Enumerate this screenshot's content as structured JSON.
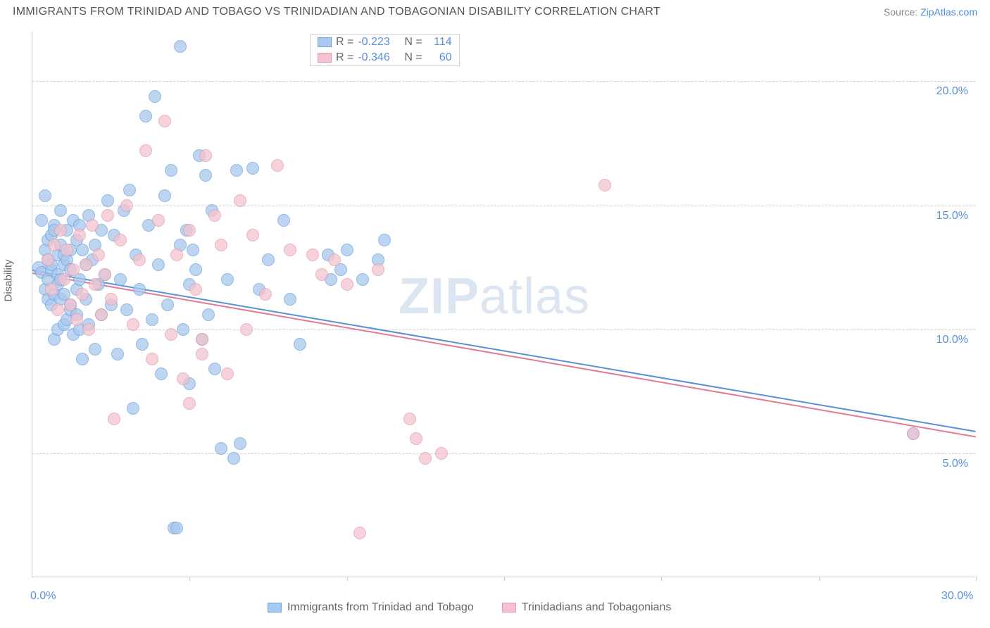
{
  "title": "IMMIGRANTS FROM TRINIDAD AND TOBAGO VS TRINIDADIAN AND TOBAGONIAN DISABILITY CORRELATION CHART",
  "source_prefix": "Source: ",
  "source_link": "ZipAtlas.com",
  "y_axis_title": "Disability",
  "watermark_bold": "ZIP",
  "watermark_rest": "atlas",
  "chart": {
    "type": "scatter",
    "xlim": [
      0,
      30
    ],
    "ylim": [
      0,
      22
    ],
    "y_ticks": [
      5,
      10,
      15,
      20
    ],
    "y_tick_labels": [
      "5.0%",
      "10.0%",
      "15.0%",
      "20.0%"
    ],
    "x_ticks": [
      5,
      10,
      15,
      20,
      25,
      30
    ],
    "x_corner_left": "0.0%",
    "x_corner_right": "30.0%",
    "background_color": "#ffffff",
    "grid_color": "#d0d0d0",
    "axis_color": "#cccccc",
    "tick_label_color": "#5b8fd8",
    "point_radius": 9,
    "point_opacity_fill": 0.35,
    "series": [
      {
        "name": "Immigrants from Trinidad and Tobago",
        "color_stroke": "#6da4e0",
        "color_fill": "#a9c8ed",
        "R": "-0.223",
        "N": "114",
        "trend": {
          "x1": 0,
          "y1": 12.4,
          "x2": 30,
          "y2": 5.9,
          "color": "#5b8fd8"
        },
        "points": [
          [
            0.2,
            12.5
          ],
          [
            0.3,
            12.3
          ],
          [
            0.3,
            14.4
          ],
          [
            0.4,
            13.2
          ],
          [
            0.4,
            11.6
          ],
          [
            0.4,
            15.4
          ],
          [
            0.5,
            12.8
          ],
          [
            0.5,
            12.0
          ],
          [
            0.5,
            13.6
          ],
          [
            0.5,
            11.2
          ],
          [
            0.6,
            12.4
          ],
          [
            0.6,
            13.8
          ],
          [
            0.6,
            11.0
          ],
          [
            0.6,
            12.6
          ],
          [
            0.7,
            14.2
          ],
          [
            0.7,
            11.4
          ],
          [
            0.7,
            14.0
          ],
          [
            0.7,
            9.6
          ],
          [
            0.8,
            12.2
          ],
          [
            0.8,
            13.0
          ],
          [
            0.8,
            11.8
          ],
          [
            0.8,
            10.0
          ],
          [
            0.9,
            13.4
          ],
          [
            0.9,
            12.0
          ],
          [
            0.9,
            11.2
          ],
          [
            0.9,
            14.8
          ],
          [
            1.0,
            12.6
          ],
          [
            1.0,
            10.2
          ],
          [
            1.0,
            13.0
          ],
          [
            1.0,
            11.4
          ],
          [
            1.1,
            12.8
          ],
          [
            1.1,
            14.0
          ],
          [
            1.1,
            10.4
          ],
          [
            1.2,
            13.2
          ],
          [
            1.2,
            11.0
          ],
          [
            1.2,
            10.8
          ],
          [
            1.2,
            12.4
          ],
          [
            1.3,
            14.4
          ],
          [
            1.3,
            9.8
          ],
          [
            1.4,
            13.6
          ],
          [
            1.4,
            11.6
          ],
          [
            1.4,
            10.6
          ],
          [
            1.5,
            12.0
          ],
          [
            1.5,
            14.2
          ],
          [
            1.5,
            10.0
          ],
          [
            1.6,
            13.2
          ],
          [
            1.6,
            8.8
          ],
          [
            1.7,
            12.6
          ],
          [
            1.7,
            11.2
          ],
          [
            1.8,
            14.6
          ],
          [
            1.8,
            10.2
          ],
          [
            1.9,
            12.8
          ],
          [
            2.0,
            13.4
          ],
          [
            2.0,
            9.2
          ],
          [
            2.1,
            11.8
          ],
          [
            2.2,
            14.0
          ],
          [
            2.2,
            10.6
          ],
          [
            2.3,
            12.2
          ],
          [
            2.4,
            15.2
          ],
          [
            2.5,
            11.0
          ],
          [
            2.6,
            13.8
          ],
          [
            2.7,
            9.0
          ],
          [
            2.8,
            12.0
          ],
          [
            2.9,
            14.8
          ],
          [
            3.0,
            10.8
          ],
          [
            3.1,
            15.6
          ],
          [
            3.2,
            6.8
          ],
          [
            3.3,
            13.0
          ],
          [
            3.4,
            11.6
          ],
          [
            3.5,
            9.4
          ],
          [
            3.6,
            18.6
          ],
          [
            3.7,
            14.2
          ],
          [
            3.8,
            10.4
          ],
          [
            3.9,
            19.4
          ],
          [
            4.0,
            12.6
          ],
          [
            4.1,
            8.2
          ],
          [
            4.2,
            15.4
          ],
          [
            4.3,
            11.0
          ],
          [
            4.4,
            16.4
          ],
          [
            4.5,
            2.0
          ],
          [
            4.6,
            2.0
          ],
          [
            4.7,
            13.4
          ],
          [
            4.7,
            21.4
          ],
          [
            4.8,
            10.0
          ],
          [
            4.9,
            14.0
          ],
          [
            5.0,
            11.8
          ],
          [
            5.0,
            7.8
          ],
          [
            5.1,
            13.2
          ],
          [
            5.2,
            12.4
          ],
          [
            5.3,
            17.0
          ],
          [
            5.4,
            9.6
          ],
          [
            5.5,
            16.2
          ],
          [
            5.6,
            10.6
          ],
          [
            5.7,
            14.8
          ],
          [
            5.8,
            8.4
          ],
          [
            6.0,
            5.2
          ],
          [
            6.2,
            12.0
          ],
          [
            6.4,
            4.8
          ],
          [
            6.5,
            16.4
          ],
          [
            6.6,
            5.4
          ],
          [
            7.0,
            16.5
          ],
          [
            7.2,
            11.6
          ],
          [
            7.5,
            12.8
          ],
          [
            8.0,
            14.4
          ],
          [
            8.2,
            11.2
          ],
          [
            8.5,
            9.4
          ],
          [
            9.4,
            13.0
          ],
          [
            9.5,
            12.0
          ],
          [
            9.8,
            12.4
          ],
          [
            10.0,
            13.2
          ],
          [
            10.5,
            12.0
          ],
          [
            11.0,
            12.8
          ],
          [
            11.2,
            13.6
          ],
          [
            28.0,
            5.8
          ]
        ]
      },
      {
        "name": "Trinidadians and Tobagonians",
        "color_stroke": "#e89aae",
        "color_fill": "#f3c4d0",
        "R": "-0.346",
        "N": "60",
        "trend": {
          "x1": 0,
          "y1": 12.3,
          "x2": 30,
          "y2": 5.7,
          "color": "#e37a97"
        },
        "points": [
          [
            0.5,
            12.8
          ],
          [
            0.6,
            11.6
          ],
          [
            0.7,
            13.4
          ],
          [
            0.8,
            10.8
          ],
          [
            0.9,
            14.0
          ],
          [
            1.0,
            12.0
          ],
          [
            1.1,
            13.2
          ],
          [
            1.2,
            11.0
          ],
          [
            1.3,
            12.4
          ],
          [
            1.4,
            10.4
          ],
          [
            1.5,
            13.8
          ],
          [
            1.6,
            11.4
          ],
          [
            1.7,
            12.6
          ],
          [
            1.8,
            10.0
          ],
          [
            1.9,
            14.2
          ],
          [
            2.0,
            11.8
          ],
          [
            2.1,
            13.0
          ],
          [
            2.2,
            10.6
          ],
          [
            2.3,
            12.2
          ],
          [
            2.4,
            14.6
          ],
          [
            2.5,
            11.2
          ],
          [
            2.6,
            6.4
          ],
          [
            2.8,
            13.6
          ],
          [
            3.0,
            15.0
          ],
          [
            3.2,
            10.2
          ],
          [
            3.4,
            12.8
          ],
          [
            3.6,
            17.2
          ],
          [
            3.8,
            8.8
          ],
          [
            4.0,
            14.4
          ],
          [
            4.2,
            18.4
          ],
          [
            4.4,
            9.8
          ],
          [
            4.6,
            13.0
          ],
          [
            4.8,
            8.0
          ],
          [
            5.0,
            14.0
          ],
          [
            5.0,
            7.0
          ],
          [
            5.2,
            11.6
          ],
          [
            5.4,
            9.0
          ],
          [
            5.5,
            17.0
          ],
          [
            5.8,
            14.6
          ],
          [
            6.0,
            13.4
          ],
          [
            6.2,
            8.2
          ],
          [
            6.6,
            15.2
          ],
          [
            6.8,
            10.0
          ],
          [
            7.0,
            13.8
          ],
          [
            7.4,
            11.4
          ],
          [
            7.8,
            16.6
          ],
          [
            8.2,
            13.2
          ],
          [
            8.9,
            13.0
          ],
          [
            9.2,
            12.2
          ],
          [
            9.6,
            12.8
          ],
          [
            10.0,
            11.8
          ],
          [
            10.4,
            1.8
          ],
          [
            11.0,
            12.4
          ],
          [
            12.0,
            6.4
          ],
          [
            12.2,
            5.6
          ],
          [
            12.5,
            4.8
          ],
          [
            13.0,
            5.0
          ],
          [
            18.2,
            15.8
          ],
          [
            28.0,
            5.8
          ],
          [
            5.4,
            9.6
          ]
        ]
      }
    ]
  },
  "legend_top": {
    "R_label": "R =",
    "N_label": "N ="
  },
  "legend_bottom_items": [
    0,
    1
  ]
}
